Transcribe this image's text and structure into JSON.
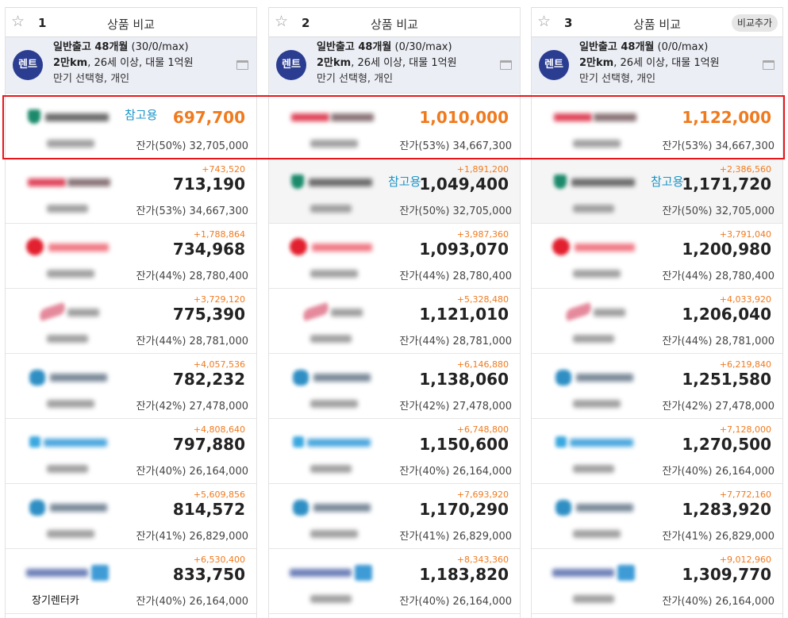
{
  "header_title": "상품 비교",
  "add_compare_label": "비교추가",
  "columns": [
    {
      "num": "1",
      "condition": {
        "badge": "렌트",
        "line1_bold": "일반출고 48개월",
        "line1_rest": " (30/0/max)",
        "line2_bold": "2만km",
        "line2_rest": ", 26세 이상, 대물 1억원",
        "line3": "만기 선택형, 개인"
      },
      "rows": [
        {
          "ref": "참고용",
          "price": "697,700",
          "residual": "잔가(50%) 32,705,000",
          "logo": "hana"
        },
        {
          "diff": "+743,520",
          "price": "713,190",
          "residual": "잔가(53%) 34,667,300",
          "logo": "red-text"
        },
        {
          "diff": "+1,788,864",
          "price": "734,968",
          "residual": "잔가(44%) 28,780,400",
          "logo": "red-circle"
        },
        {
          "diff": "+3,729,120",
          "price": "775,390",
          "residual": "잔가(44%) 28,781,000",
          "logo": "pink-swoosh"
        },
        {
          "diff": "+4,057,536",
          "price": "782,232",
          "residual": "잔가(42%) 27,478,000",
          "logo": "teal-flower"
        },
        {
          "diff": "+4,808,640",
          "price": "797,880",
          "residual": "잔가(40%) 26,164,000",
          "logo": "blue-text"
        },
        {
          "diff": "+5,609,856",
          "price": "814,572",
          "residual": "잔가(41%) 26,829,000",
          "logo": "teal-flower"
        },
        {
          "diff": "+6,530,400",
          "price": "833,750",
          "residual": "잔가(40%) 26,164,000",
          "logo": "blue-box",
          "sub_text": "장기렌터카"
        }
      ]
    },
    {
      "num": "2",
      "condition": {
        "badge": "렌트",
        "line1_bold": "일반출고 48개월",
        "line1_rest": " (0/30/max)",
        "line2_bold": "2만km",
        "line2_rest": ", 26세 이상, 대물 1억원",
        "line3": "만기 선택형, 개인"
      },
      "rows": [
        {
          "price": "1,010,000",
          "residual": "잔가(53%) 34,667,300",
          "logo": "red-text"
        },
        {
          "ref": "참고용",
          "diff": "+1,891,200",
          "price": "1,049,400",
          "residual": "잔가(50%) 32,705,000",
          "logo": "hana"
        },
        {
          "diff": "+3,987,360",
          "price": "1,093,070",
          "residual": "잔가(44%) 28,780,400",
          "logo": "red-circle"
        },
        {
          "diff": "+5,328,480",
          "price": "1,121,010",
          "residual": "잔가(44%) 28,781,000",
          "logo": "pink-swoosh"
        },
        {
          "diff": "+6,146,880",
          "price": "1,138,060",
          "residual": "잔가(42%) 27,478,000",
          "logo": "teal-flower"
        },
        {
          "diff": "+6,748,800",
          "price": "1,150,600",
          "residual": "잔가(40%) 26,164,000",
          "logo": "blue-text"
        },
        {
          "diff": "+7,693,920",
          "price": "1,170,290",
          "residual": "잔가(41%) 26,829,000",
          "logo": "teal-flower"
        },
        {
          "diff": "+8,343,360",
          "price": "1,183,820",
          "residual": "잔가(40%) 26,164,000",
          "logo": "blue-box"
        }
      ]
    },
    {
      "num": "3",
      "condition": {
        "badge": "렌트",
        "line1_bold": "일반출고 48개월",
        "line1_rest": " (0/0/max)",
        "line2_bold": "2만km",
        "line2_rest": ", 26세 이상, 대물 1억원",
        "line3": "만기 선택형, 개인"
      },
      "rows": [
        {
          "price": "1,122,000",
          "residual": "잔가(53%) 34,667,300",
          "logo": "red-text"
        },
        {
          "ref": "참고용",
          "diff": "+2,386,560",
          "price": "1,171,720",
          "residual": "잔가(50%) 32,705,000",
          "logo": "hana"
        },
        {
          "diff": "+3,791,040",
          "price": "1,200,980",
          "residual": "잔가(44%) 28,780,400",
          "logo": "red-circle"
        },
        {
          "diff": "+4,033,920",
          "price": "1,206,040",
          "residual": "잔가(44%) 28,781,000",
          "logo": "pink-swoosh"
        },
        {
          "diff": "+6,219,840",
          "price": "1,251,580",
          "residual": "잔가(42%) 27,478,000",
          "logo": "teal-flower"
        },
        {
          "diff": "+7,128,000",
          "price": "1,270,500",
          "residual": "잔가(40%) 26,164,000",
          "logo": "blue-text"
        },
        {
          "diff": "+7,772,160",
          "price": "1,283,920",
          "residual": "잔가(41%) 26,829,000",
          "logo": "teal-flower"
        },
        {
          "diff": "+9,012,960",
          "price": "1,309,770",
          "residual": "잔가(40%) 26,164,000",
          "logo": "blue-box"
        }
      ]
    }
  ],
  "colors": {
    "accent_orange": "#f07a1e",
    "ref_blue": "#1a95c8",
    "badge_navy": "#2b3d91",
    "highlight_red": "#e8161b"
  },
  "icons": {
    "favorite": "star-outline-icon",
    "condition_toggle": "window-icon"
  }
}
